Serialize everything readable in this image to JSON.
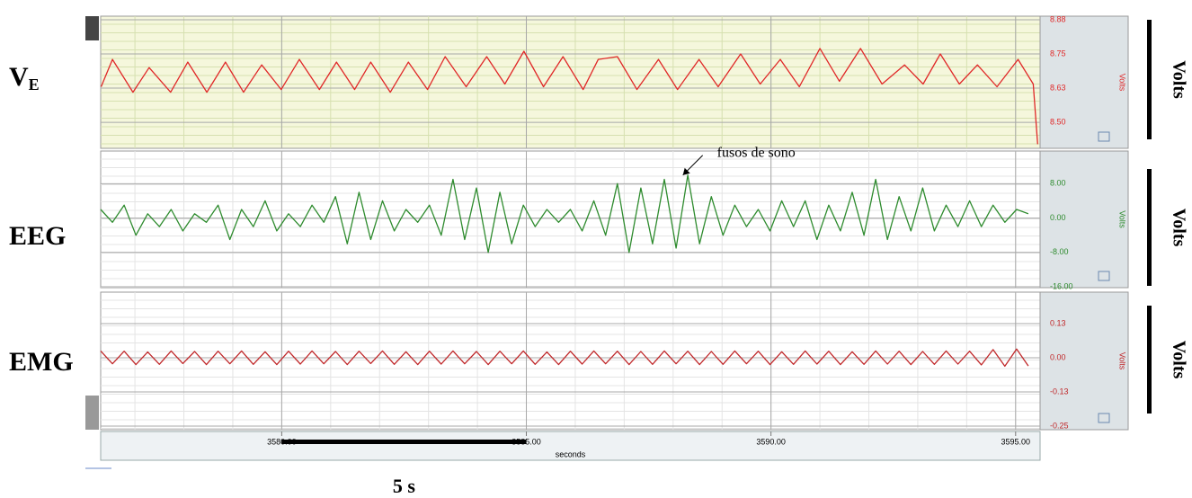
{
  "chart_data": [
    {
      "type": "line",
      "name": "V",
      "name_sub": "E",
      "side_label": "Volts",
      "axis_label": "Volts",
      "color": "#e02828",
      "background": "#f5f7dc",
      "ylim": [
        8.405,
        8.888
      ],
      "yticks": [
        {
          "value": 8.875,
          "label": "8.88"
        },
        {
          "value": 8.75,
          "label": "8.75"
        },
        {
          "value": 8.625,
          "label": "8.63"
        },
        {
          "value": 8.5,
          "label": "8.50"
        }
      ],
      "x": [
        3576.31,
        3576.54,
        3576.96,
        3577.29,
        3577.73,
        3578.08,
        3578.47,
        3578.85,
        3579.22,
        3579.59,
        3579.99,
        3580.36,
        3580.77,
        3581.12,
        3581.49,
        3581.82,
        3582.22,
        3582.59,
        3582.98,
        3583.34,
        3583.77,
        3584.19,
        3584.56,
        3584.95,
        3585.35,
        3585.75,
        3586.16,
        3586.47,
        3586.86,
        3587.26,
        3587.7,
        3588.09,
        3588.53,
        3588.92,
        3589.38,
        3589.78,
        3590.19,
        3590.58,
        3591.0,
        3591.4,
        3591.83,
        3592.27,
        3592.73,
        3593.11,
        3593.46,
        3593.85,
        3594.22,
        3594.62,
        3595.05,
        3595.36,
        3595.45
      ],
      "values": [
        8.63,
        8.73,
        8.61,
        8.7,
        8.61,
        8.72,
        8.61,
        8.72,
        8.61,
        8.71,
        8.62,
        8.73,
        8.62,
        8.72,
        8.62,
        8.72,
        8.61,
        8.72,
        8.62,
        8.74,
        8.63,
        8.74,
        8.64,
        8.76,
        8.63,
        8.74,
        8.62,
        8.73,
        8.74,
        8.62,
        8.73,
        8.62,
        8.73,
        8.63,
        8.75,
        8.64,
        8.73,
        8.63,
        8.77,
        8.65,
        8.77,
        8.64,
        8.71,
        8.64,
        8.75,
        8.64,
        8.71,
        8.63,
        8.73,
        8.64,
        8.42
      ]
    },
    {
      "type": "line",
      "name": "EEG",
      "side_label": "Volts",
      "axis_label": "Volts",
      "color": "#2e8b2e",
      "background": "#ffffff",
      "ylim": [
        -16.2,
        15.6
      ],
      "yticks": [
        {
          "value": 8,
          "label": "8.00"
        },
        {
          "value": 0,
          "label": "0.00"
        },
        {
          "value": -8,
          "label": "-8.00"
        },
        {
          "value": -16,
          "label": "-16.00"
        }
      ],
      "annotation": {
        "text": "fusos de sono",
        "x": 3588.2,
        "y": 10
      },
      "x": [
        3576.3,
        3576.54,
        3576.78,
        3577.02,
        3577.26,
        3577.5,
        3577.74,
        3577.98,
        3578.22,
        3578.46,
        3578.7,
        3578.94,
        3579.18,
        3579.42,
        3579.66,
        3579.9,
        3580.14,
        3580.38,
        3580.62,
        3580.86,
        3581.1,
        3581.34,
        3581.58,
        3581.82,
        3582.06,
        3582.3,
        3582.54,
        3582.78,
        3583.02,
        3583.26,
        3583.5,
        3583.74,
        3583.98,
        3584.22,
        3584.46,
        3584.7,
        3584.94,
        3585.18,
        3585.42,
        3585.66,
        3585.9,
        3586.14,
        3586.38,
        3586.62,
        3586.86,
        3587.1,
        3587.34,
        3587.58,
        3587.82,
        3588.06,
        3588.3,
        3588.54,
        3588.78,
        3589.02,
        3589.26,
        3589.5,
        3589.74,
        3589.98,
        3590.22,
        3590.46,
        3590.7,
        3590.94,
        3591.18,
        3591.42,
        3591.66,
        3591.9,
        3592.14,
        3592.38,
        3592.62,
        3592.86,
        3593.1,
        3593.34,
        3593.58,
        3593.82,
        3594.06,
        3594.3,
        3594.54,
        3594.78,
        3595.02,
        3595.26
      ],
      "values": [
        2,
        -1,
        3,
        -4,
        1,
        -2,
        2,
        -3,
        1,
        -1,
        3,
        -5,
        2,
        -2,
        4,
        -3,
        1,
        -2,
        3,
        -1,
        5,
        -6,
        6,
        -5,
        4,
        -3,
        2,
        -1,
        3,
        -4,
        9,
        -5,
        7,
        -8,
        6,
        -6,
        3,
        -2,
        2,
        -1,
        2,
        -3,
        4,
        -4,
        8,
        -8,
        7,
        -6,
        9,
        -7,
        10,
        -6,
        5,
        -4,
        3,
        -2,
        2,
        -3,
        4,
        -2,
        4,
        -5,
        3,
        -3,
        6,
        -4,
        9,
        -5,
        5,
        -3,
        7,
        -3,
        3,
        -2,
        4,
        -2,
        3,
        -1,
        2,
        1
      ]
    },
    {
      "type": "line",
      "name": "EMG",
      "side_label": "Volts",
      "axis_label": "Volts",
      "color": "#c0282a",
      "background": "#ffffff",
      "ylim": [
        -0.263,
        0.24
      ],
      "yticks": [
        {
          "value": 0.125,
          "label": "0.13"
        },
        {
          "value": 0,
          "label": "0.00"
        },
        {
          "value": -0.125,
          "label": "-0.13"
        },
        {
          "value": -0.25,
          "label": "-0.25"
        }
      ],
      "x": [
        3576.3,
        3576.54,
        3576.78,
        3577.02,
        3577.26,
        3577.5,
        3577.74,
        3577.98,
        3578.22,
        3578.46,
        3578.7,
        3578.94,
        3579.18,
        3579.42,
        3579.66,
        3579.9,
        3580.14,
        3580.38,
        3580.62,
        3580.86,
        3581.1,
        3581.34,
        3581.58,
        3581.82,
        3582.06,
        3582.3,
        3582.54,
        3582.78,
        3583.02,
        3583.26,
        3583.5,
        3583.74,
        3583.98,
        3584.22,
        3584.46,
        3584.7,
        3584.94,
        3585.18,
        3585.42,
        3585.66,
        3585.9,
        3586.14,
        3586.38,
        3586.62,
        3586.86,
        3587.1,
        3587.34,
        3587.58,
        3587.82,
        3588.06,
        3588.3,
        3588.54,
        3588.78,
        3589.02,
        3589.26,
        3589.5,
        3589.74,
        3589.98,
        3590.22,
        3590.46,
        3590.7,
        3590.94,
        3591.18,
        3591.42,
        3591.66,
        3591.9,
        3592.14,
        3592.38,
        3592.62,
        3592.86,
        3593.1,
        3593.34,
        3593.58,
        3593.82,
        3594.06,
        3594.3,
        3594.54,
        3594.78,
        3595.02,
        3595.26
      ],
      "values": [
        0.025,
        -0.022,
        0.024,
        -0.025,
        0.021,
        -0.024,
        0.025,
        -0.021,
        0.023,
        -0.025,
        0.024,
        -0.022,
        0.025,
        -0.024,
        0.022,
        -0.025,
        0.024,
        -0.023,
        0.025,
        -0.022,
        0.023,
        -0.025,
        0.024,
        -0.021,
        0.025,
        -0.024,
        0.022,
        -0.025,
        0.024,
        -0.023,
        0.025,
        -0.022,
        0.023,
        -0.025,
        0.024,
        -0.022,
        0.025,
        -0.024,
        0.021,
        -0.025,
        0.024,
        -0.023,
        0.025,
        -0.022,
        0.024,
        -0.025,
        0.023,
        -0.024,
        0.025,
        -0.022,
        0.024,
        -0.025,
        0.023,
        -0.024,
        0.025,
        -0.022,
        0.024,
        -0.025,
        0.022,
        -0.024,
        0.025,
        -0.023,
        0.024,
        -0.025,
        0.022,
        -0.024,
        0.025,
        -0.023,
        0.024,
        -0.025,
        0.023,
        -0.024,
        0.025,
        -0.023,
        0.024,
        -0.026,
        0.03,
        -0.031,
        0.032,
        -0.03
      ]
    }
  ],
  "time_axis": {
    "xlim": [
      3576.3,
      3595.5
    ],
    "xticks": [
      {
        "value": 3580,
        "label": "3580.00"
      },
      {
        "value": 3585,
        "label": "3585.00"
      },
      {
        "value": 3590,
        "label": "3590.00"
      },
      {
        "value": 3595,
        "label": "3595.00"
      }
    ],
    "xlabel": "seconds"
  },
  "scale_bar": {
    "label": "5 s",
    "start": 3580,
    "length": 5
  }
}
